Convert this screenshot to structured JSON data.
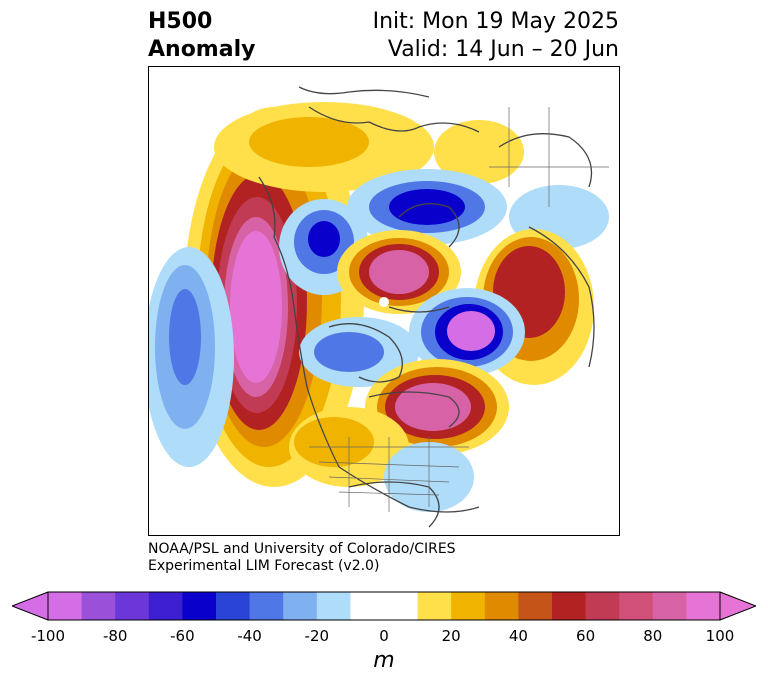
{
  "header": {
    "title_line1": "H500",
    "title_line2": "Anomaly",
    "init": "Init: Mon 19 May 2025",
    "valid": "Valid: 14 Jun – 20 Jun"
  },
  "credit": {
    "line1": "NOAA/PSL and University of Colorado/CIRES",
    "line2": "Experimental LIM Forecast (v2.0)"
  },
  "colorbar": {
    "unit": "m",
    "tick_labels": [
      "-100",
      "-80",
      "-60",
      "-40",
      "-20",
      "0",
      "20",
      "40",
      "60",
      "80",
      "100"
    ],
    "colors": [
      "#d56ee6",
      "#9a50d9",
      "#6b37d9",
      "#3d1fd1",
      "#0a00cc",
      "#2a44d8",
      "#4f78e6",
      "#7fb0f0",
      "#aedcf9",
      "#ffffff",
      "#ffffff",
      "#ffe04a",
      "#f0b400",
      "#e08a00",
      "#c45418",
      "#b22222",
      "#c23b55",
      "#d0507a",
      "#d763a6",
      "#e674d6"
    ],
    "under_color": "#d56ee6",
    "over_color": "#e674d6"
  }
}
